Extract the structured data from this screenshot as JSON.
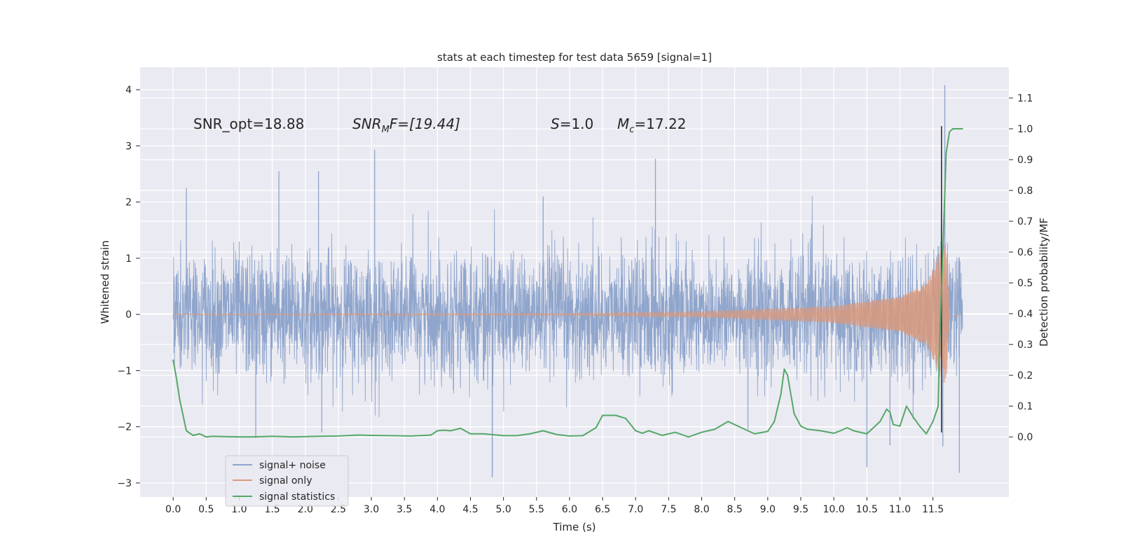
{
  "chart_data": {
    "type": "line",
    "title": "stats at each timestep for test data 5659 [signal=1]",
    "xlabel": "Time (s)",
    "ylabel": "Whitened strain",
    "y2label": "Detection probability/MF",
    "xlim": [
      -0.5,
      12.65
    ],
    "ylim": [
      -3.25,
      4.4
    ],
    "y2lim": [
      -0.195,
      1.2
    ],
    "xticks": [
      0.0,
      0.5,
      1.0,
      1.5,
      2.0,
      2.5,
      3.0,
      3.5,
      4.0,
      4.5,
      5.0,
      5.5,
      6.0,
      6.5,
      7.0,
      7.5,
      8.0,
      8.5,
      9.0,
      9.5,
      10.0,
      10.5,
      11.0,
      11.5
    ],
    "xtick_labels": [
      "0.0",
      "0.5",
      "1.0",
      "1.5",
      "2.0",
      "2.5",
      "3.0",
      "3.5",
      "4.0",
      "4.5",
      "5.0",
      "5.5",
      "6.0",
      "6.5",
      "7.0",
      "7.5",
      "8.0",
      "8.5",
      "9.0",
      "9.5",
      "10.0",
      "10.5",
      "11.0",
      "11.5"
    ],
    "yticks": [
      -3,
      -2,
      -1,
      0,
      1,
      2,
      3,
      4
    ],
    "ytick_labels": [
      "−3",
      "−2",
      "−1",
      "0",
      "1",
      "2",
      "3",
      "4"
    ],
    "y2ticks": [
      0.0,
      0.1,
      0.2,
      0.3,
      0.4,
      0.5,
      0.6,
      0.7,
      0.8,
      0.9,
      1.0,
      1.1
    ],
    "y2tick_labels": [
      "0.0",
      "0.1",
      "0.2",
      "0.3",
      "0.4",
      "0.5",
      "0.6",
      "0.7",
      "0.8",
      "0.9",
      "1.0",
      "1.1"
    ],
    "annotations": {
      "snr_opt": "SNR_opt=18.88",
      "snr_mf_sym": "SNR",
      "snr_mf_sub": "M",
      "snr_mf_rest": "F=[19.44]",
      "s_sym": "S",
      "s_val": "=1.0",
      "mc_sym": "M",
      "mc_sub": "c",
      "mc_val": "=17.22"
    },
    "legend": {
      "placement": "lower-left",
      "entries": [
        "signal+ noise",
        "signal only",
        "signal statistics"
      ]
    },
    "colors": {
      "noise": "#8fa5cc",
      "signal": "#d9997c",
      "stats": "#55a868",
      "background": "#eaeaf2",
      "grid": "#ffffff",
      "merger_line": "#333333"
    },
    "series": [
      {
        "name": "signal+ noise",
        "axis": "left",
        "duration_s": 11.95,
        "envelope_sigma": 0.55,
        "peak_max": 4.08,
        "peak_min": -2.9,
        "peak_max_time": 11.68,
        "peak_min_time": 4.83,
        "notable_peaks": [
          [
            0.2,
            2.25
          ],
          [
            1.6,
            2.55
          ],
          [
            2.2,
            2.55
          ],
          [
            3.05,
            2.93
          ],
          [
            5.6,
            2.1
          ],
          [
            7.3,
            2.77
          ],
          [
            4.83,
            -2.88
          ],
          [
            10.5,
            -2.72
          ],
          [
            11.9,
            -2.82
          ],
          [
            1.25,
            -2.2
          ],
          [
            2.25,
            -2.1
          ],
          [
            8.7,
            -2.05
          ],
          [
            10.85,
            -2.33
          ],
          [
            11.65,
            -2.35
          ]
        ]
      },
      {
        "name": "signal only",
        "axis": "left",
        "description_points": [
          [
            0.0,
            0.01
          ],
          [
            6.0,
            0.02
          ],
          [
            8.0,
            0.05
          ],
          [
            10.0,
            0.15
          ],
          [
            11.0,
            0.32
          ],
          [
            11.4,
            0.55
          ],
          [
            11.6,
            1.1
          ],
          [
            11.7,
            1.3
          ],
          [
            11.75,
            0.05
          ]
        ]
      },
      {
        "name": "signal statistics",
        "axis": "right",
        "x": [
          0.0,
          0.05,
          0.1,
          0.15,
          0.2,
          0.3,
          0.4,
          0.5,
          0.6,
          0.8,
          1.0,
          1.2,
          1.5,
          1.8,
          2.0,
          2.2,
          2.5,
          2.8,
          3.0,
          3.3,
          3.6,
          3.9,
          4.0,
          4.1,
          4.2,
          4.35,
          4.5,
          4.7,
          5.0,
          5.2,
          5.4,
          5.6,
          5.8,
          6.0,
          6.2,
          6.4,
          6.5,
          6.6,
          6.7,
          6.85,
          7.0,
          7.1,
          7.2,
          7.4,
          7.6,
          7.8,
          8.0,
          8.2,
          8.4,
          8.6,
          8.8,
          9.0,
          9.1,
          9.2,
          9.25,
          9.3,
          9.4,
          9.5,
          9.6,
          9.8,
          10.0,
          10.1,
          10.2,
          10.3,
          10.5,
          10.7,
          10.8,
          10.85,
          10.9,
          11.0,
          11.1,
          11.2,
          11.3,
          11.4,
          11.5,
          11.58,
          11.6,
          11.65,
          11.7,
          11.75,
          11.8,
          11.9,
          11.95
        ],
        "values": [
          0.25,
          0.19,
          0.12,
          0.07,
          0.02,
          0.005,
          0.01,
          0.0,
          0.002,
          0.001,
          0.0,
          0.0,
          0.002,
          0.0,
          0.001,
          0.002,
          0.003,
          0.006,
          0.005,
          0.004,
          0.003,
          0.006,
          0.02,
          0.022,
          0.02,
          0.028,
          0.01,
          0.01,
          0.004,
          0.004,
          0.01,
          0.02,
          0.008,
          0.003,
          0.004,
          0.03,
          0.07,
          0.07,
          0.07,
          0.06,
          0.02,
          0.012,
          0.02,
          0.005,
          0.015,
          0.0,
          0.015,
          0.025,
          0.05,
          0.03,
          0.01,
          0.018,
          0.05,
          0.14,
          0.22,
          0.2,
          0.075,
          0.035,
          0.025,
          0.02,
          0.012,
          0.02,
          0.03,
          0.02,
          0.01,
          0.05,
          0.09,
          0.08,
          0.04,
          0.035,
          0.1,
          0.065,
          0.035,
          0.01,
          0.05,
          0.1,
          0.3,
          0.6,
          0.92,
          0.99,
          1.0,
          1.0,
          1.0
        ]
      }
    ],
    "merger_line_time": 11.63
  }
}
